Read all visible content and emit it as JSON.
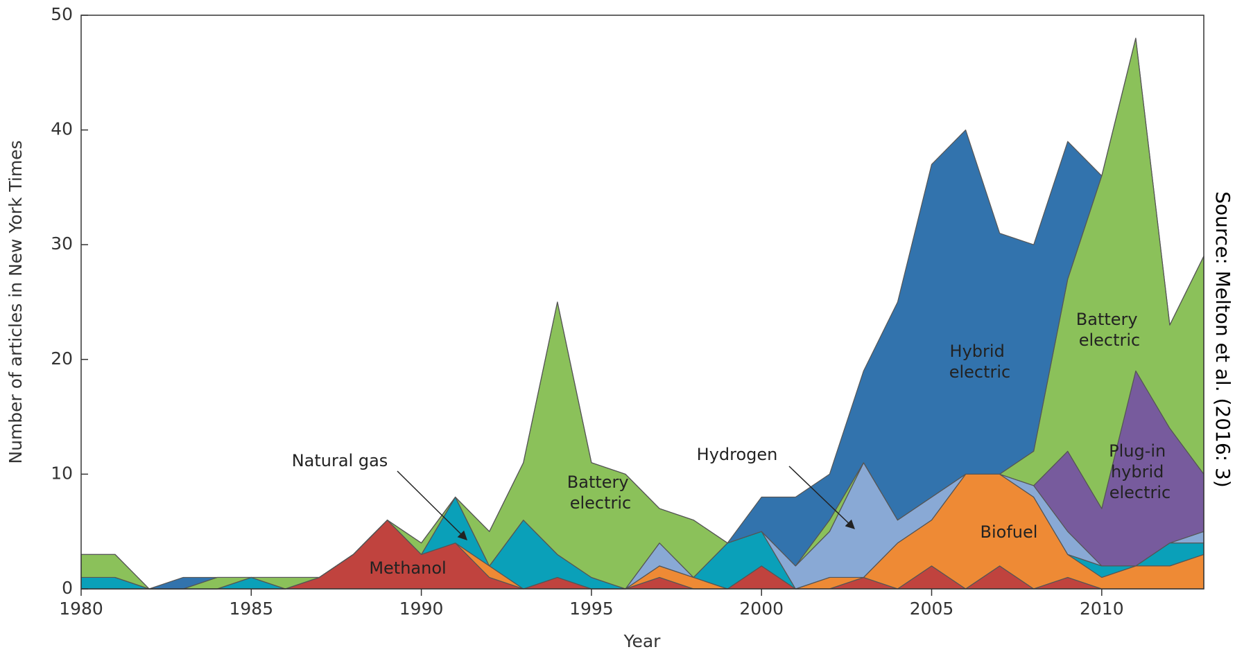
{
  "chart_data": {
    "type": "stacked_area",
    "xlabel": "Year",
    "ylabel": "Number of articles in New York Times",
    "source": "Source: Melton et al. (2016: 3)",
    "x": [
      1980,
      1981,
      1982,
      1983,
      1984,
      1985,
      1986,
      1987,
      1988,
      1989,
      1990,
      1991,
      1992,
      1993,
      1994,
      1995,
      1996,
      1997,
      1998,
      1999,
      2000,
      2001,
      2002,
      2003,
      2004,
      2005,
      2006,
      2007,
      2008,
      2009,
      2010,
      2011,
      2012,
      2013
    ],
    "xlim": [
      1980,
      2013
    ],
    "xticks": [
      1980,
      1985,
      1990,
      1995,
      2000,
      2005,
      2010
    ],
    "ylim": [
      0,
      50
    ],
    "yticks": [
      0,
      10,
      20,
      30,
      40,
      50
    ],
    "series": [
      {
        "name": "Methanol",
        "color": "#c0433e",
        "values": [
          0,
          0,
          0,
          0,
          0,
          0,
          0,
          1,
          3,
          6,
          3,
          4,
          1,
          0,
          1,
          0,
          0,
          1,
          0,
          0,
          2,
          0,
          0,
          1,
          0,
          2,
          0,
          2,
          0,
          1,
          0,
          0,
          0,
          0
        ]
      },
      {
        "name": "Biofuel",
        "color": "#ee8a35",
        "values": [
          0,
          0,
          0,
          0,
          0,
          0,
          0,
          0,
          0,
          0,
          0,
          0,
          1,
          0,
          0,
          0,
          0,
          1,
          1,
          0,
          0,
          0,
          1,
          0,
          4,
          4,
          10,
          8,
          8,
          2,
          1,
          2,
          2,
          3
        ]
      },
      {
        "name": "Natural gas",
        "color": "#0aa0b9",
        "values": [
          1,
          1,
          0,
          0,
          0,
          1,
          0,
          0,
          0,
          0,
          0,
          4,
          0,
          6,
          2,
          1,
          0,
          0,
          0,
          4,
          3,
          0,
          0,
          0,
          0,
          0,
          0,
          0,
          0,
          0,
          1,
          0,
          2,
          1
        ]
      },
      {
        "name": "Hydrogen",
        "color": "#89a9d5",
        "values": [
          0,
          0,
          0,
          0,
          0,
          0,
          0,
          0,
          0,
          0,
          0,
          0,
          0,
          0,
          0,
          0,
          0,
          2,
          0,
          0,
          0,
          2,
          4,
          10,
          2,
          2,
          0,
          0,
          1,
          2,
          0,
          0,
          0,
          1
        ]
      },
      {
        "name": "Plug-in hybrid electric",
        "color": "#775b9d",
        "values": [
          0,
          0,
          0,
          0,
          0,
          0,
          0,
          0,
          0,
          0,
          0,
          0,
          0,
          0,
          0,
          0,
          0,
          0,
          0,
          0,
          0,
          0,
          0,
          0,
          0,
          0,
          0,
          0,
          0,
          7,
          5,
          17,
          10,
          5
        ]
      },
      {
        "name": "Battery electric",
        "color": "#8bc15a",
        "values": [
          2,
          2,
          0,
          0,
          1,
          0,
          1,
          0,
          0,
          0,
          1,
          0,
          3,
          5,
          22,
          10,
          10,
          3,
          5,
          0,
          0,
          0,
          1,
          0,
          0,
          0,
          0,
          0,
          3,
          15,
          29,
          29,
          9,
          19
        ]
      },
      {
        "name": "Hybrid electric",
        "color": "#3273ad",
        "values": [
          0,
          0,
          0,
          1,
          0,
          0,
          0,
          0,
          0,
          0,
          0,
          0,
          0,
          0,
          0,
          0,
          0,
          0,
          0,
          0,
          3,
          6,
          4,
          8,
          19,
          29,
          30,
          21,
          18,
          12,
          0,
          0,
          0,
          0
        ]
      }
    ],
    "annotations": [
      "Natural gas",
      "Methanol",
      "Battery electric",
      "Hydrogen",
      "Hybrid electric",
      "Biofuel",
      "Battery electric",
      "Plug-in hybrid electric"
    ]
  }
}
